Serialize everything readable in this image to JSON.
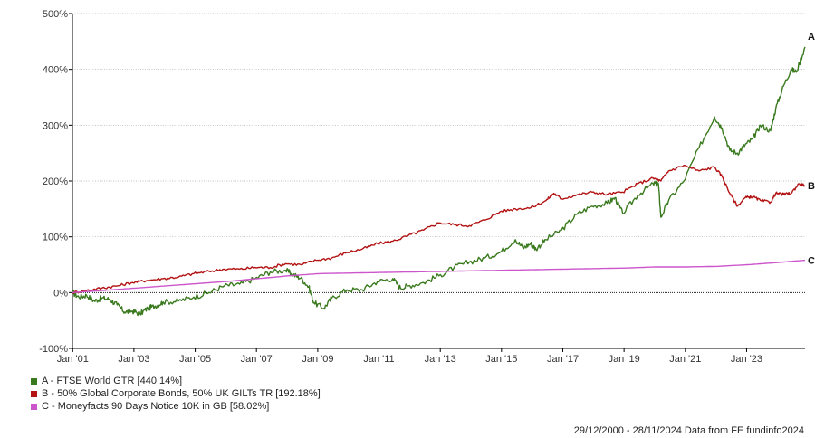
{
  "chart_data": {
    "type": "line",
    "x_ticks": [
      "Jan '01",
      "Jan '03",
      "Jan '05",
      "Jan '07",
      "Jan '09",
      "Jan '11",
      "Jan '13",
      "Jan '15",
      "Jan '17",
      "Jan '19",
      "Jan '21",
      "Jan '23"
    ],
    "y_ticks": [
      "-100%",
      "0%",
      "100%",
      "200%",
      "300%",
      "400%",
      "500%"
    ],
    "ylim": [
      -100,
      500
    ],
    "xlim": [
      "2000-12-29",
      "2024-11-28"
    ],
    "zero_line": true,
    "grid": "horizontal-dotted",
    "series": [
      {
        "letter": "A",
        "name": "A - FTSE World GTR [440.14%]",
        "color": "#3a7a1e",
        "points": [
          [
            "2000-12-29",
            0
          ],
          [
            "2001-03",
            -8
          ],
          [
            "2001-06",
            -5
          ],
          [
            "2001-09",
            -15
          ],
          [
            "2001-12",
            -10
          ],
          [
            "2002-03",
            -12
          ],
          [
            "2002-06",
            -22
          ],
          [
            "2002-09",
            -35
          ],
          [
            "2002-12",
            -33
          ],
          [
            "2003-03",
            -38
          ],
          [
            "2003-06",
            -28
          ],
          [
            "2003-09",
            -24
          ],
          [
            "2003-12",
            -17
          ],
          [
            "2004-06",
            -15
          ],
          [
            "2004-12",
            -8
          ],
          [
            "2005-06",
            0
          ],
          [
            "2005-12",
            12
          ],
          [
            "2006-06",
            15
          ],
          [
            "2006-12",
            25
          ],
          [
            "2007-06",
            37
          ],
          [
            "2007-12",
            40
          ],
          [
            "2008-03",
            32
          ],
          [
            "2008-06",
            26
          ],
          [
            "2008-09",
            10
          ],
          [
            "2008-11",
            -18
          ],
          [
            "2009-03",
            -28
          ],
          [
            "2009-06",
            -10
          ],
          [
            "2009-12",
            5
          ],
          [
            "2010-06",
            5
          ],
          [
            "2010-12",
            20
          ],
          [
            "2011-06",
            25
          ],
          [
            "2011-09",
            8
          ],
          [
            "2011-12",
            12
          ],
          [
            "2012-06",
            18
          ],
          [
            "2012-12",
            30
          ],
          [
            "2013-06",
            45
          ],
          [
            "2013-12",
            55
          ],
          [
            "2014-06",
            62
          ],
          [
            "2014-12",
            72
          ],
          [
            "2015-06",
            95
          ],
          [
            "2015-09",
            80
          ],
          [
            "2015-12",
            88
          ],
          [
            "2016-02",
            78
          ],
          [
            "2016-06",
            95
          ],
          [
            "2016-12",
            112
          ],
          [
            "2017-06",
            140
          ],
          [
            "2017-12",
            155
          ],
          [
            "2018-06",
            160
          ],
          [
            "2018-09",
            170
          ],
          [
            "2018-12",
            142
          ],
          [
            "2019-06",
            175
          ],
          [
            "2019-12",
            195
          ],
          [
            "2020-02",
            195
          ],
          [
            "2020-03",
            135
          ],
          [
            "2020-06",
            165
          ],
          [
            "2020-12",
            200
          ],
          [
            "2021-06",
            260
          ],
          [
            "2021-12",
            315
          ],
          [
            "2022-03",
            295
          ],
          [
            "2022-06",
            255
          ],
          [
            "2022-09",
            250
          ],
          [
            "2022-12",
            265
          ],
          [
            "2023-03",
            275
          ],
          [
            "2023-06",
            300
          ],
          [
            "2023-10",
            290
          ],
          [
            "2023-12",
            330
          ],
          [
            "2024-03",
            370
          ],
          [
            "2024-06",
            400
          ],
          [
            "2024-08",
            395
          ],
          [
            "2024-11-28",
            440.14
          ]
        ]
      },
      {
        "letter": "B",
        "name": "B - 50% Global Corporate Bonds, 50% UK GILTs TR [192.18%]",
        "color": "#b31212",
        "points": [
          [
            "2000-12-29",
            0
          ],
          [
            "2001-06",
            4
          ],
          [
            "2001-12",
            8
          ],
          [
            "2002-06",
            12
          ],
          [
            "2002-12",
            18
          ],
          [
            "2003-06",
            22
          ],
          [
            "2003-12",
            25
          ],
          [
            "2004-06",
            28
          ],
          [
            "2004-12",
            34
          ],
          [
            "2005-06",
            38
          ],
          [
            "2005-12",
            42
          ],
          [
            "2006-06",
            42
          ],
          [
            "2006-12",
            45
          ],
          [
            "2007-06",
            45
          ],
          [
            "2007-12",
            52
          ],
          [
            "2008-06",
            50
          ],
          [
            "2008-12",
            58
          ],
          [
            "2009-06",
            62
          ],
          [
            "2009-12",
            72
          ],
          [
            "2010-06",
            78
          ],
          [
            "2010-12",
            88
          ],
          [
            "2011-06",
            92
          ],
          [
            "2011-12",
            102
          ],
          [
            "2012-06",
            112
          ],
          [
            "2012-12",
            125
          ],
          [
            "2013-06",
            122
          ],
          [
            "2013-12",
            120
          ],
          [
            "2014-06",
            130
          ],
          [
            "2014-12",
            145
          ],
          [
            "2015-06",
            150
          ],
          [
            "2015-12",
            152
          ],
          [
            "2016-06",
            165
          ],
          [
            "2016-09",
            178
          ],
          [
            "2016-12",
            168
          ],
          [
            "2017-06",
            175
          ],
          [
            "2017-12",
            180
          ],
          [
            "2018-06",
            176
          ],
          [
            "2018-12",
            180
          ],
          [
            "2019-06",
            195
          ],
          [
            "2019-12",
            205
          ],
          [
            "2020-03",
            200
          ],
          [
            "2020-06",
            218
          ],
          [
            "2020-12",
            228
          ],
          [
            "2021-06",
            218
          ],
          [
            "2021-12",
            225
          ],
          [
            "2022-03",
            208
          ],
          [
            "2022-06",
            178
          ],
          [
            "2022-09",
            155
          ],
          [
            "2022-12",
            170
          ],
          [
            "2023-03",
            172
          ],
          [
            "2023-06",
            165
          ],
          [
            "2023-10",
            162
          ],
          [
            "2023-12",
            178
          ],
          [
            "2024-03",
            176
          ],
          [
            "2024-06",
            178
          ],
          [
            "2024-09",
            195
          ],
          [
            "2024-11-28",
            192.18
          ]
        ]
      },
      {
        "letter": "C",
        "name": "C - Moneyfacts 90 Days Notice 10K in GB [58.02%]",
        "color": "#cc55cc",
        "points": [
          [
            "2000-12-29",
            0
          ],
          [
            "2002-01",
            4
          ],
          [
            "2003-01",
            8
          ],
          [
            "2004-01",
            12
          ],
          [
            "2005-01",
            16
          ],
          [
            "2006-01",
            20
          ],
          [
            "2007-01",
            25
          ],
          [
            "2008-01",
            30
          ],
          [
            "2009-01",
            34
          ],
          [
            "2010-01",
            35
          ],
          [
            "2011-01",
            36
          ],
          [
            "2012-01",
            37
          ],
          [
            "2013-01",
            38
          ],
          [
            "2014-01",
            39
          ],
          [
            "2015-01",
            40
          ],
          [
            "2016-01",
            41
          ],
          [
            "2017-01",
            42
          ],
          [
            "2018-01",
            43
          ],
          [
            "2019-01",
            44
          ],
          [
            "2020-01",
            46
          ],
          [
            "2021-01",
            46
          ],
          [
            "2022-01",
            47
          ],
          [
            "2023-01",
            50
          ],
          [
            "2024-01",
            54
          ],
          [
            "2024-11-28",
            58.02
          ]
        ]
      }
    ]
  },
  "footer": "29/12/2000 - 28/11/2024 Data from FE fundinfo2024"
}
